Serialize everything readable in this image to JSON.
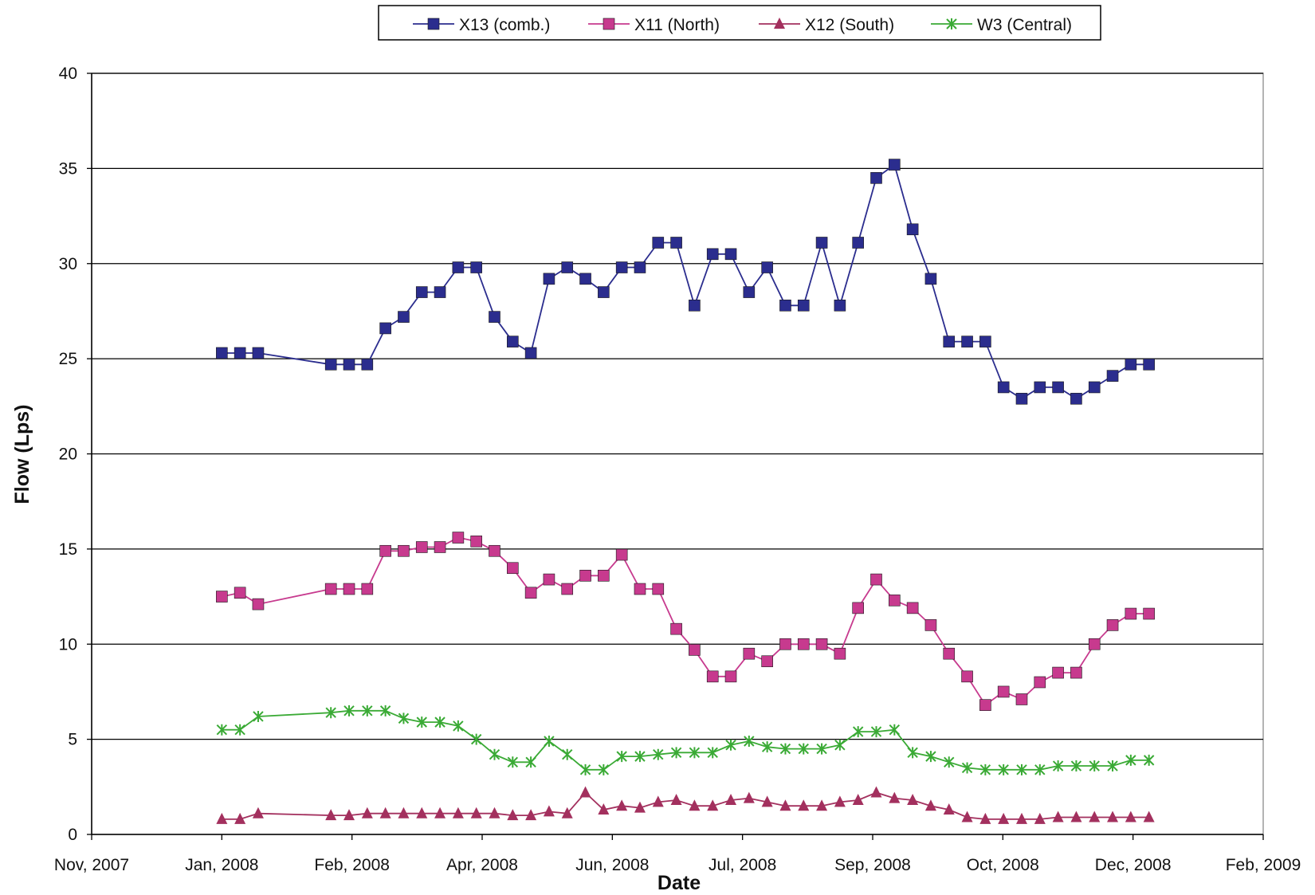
{
  "chart_data": {
    "type": "line",
    "xlabel": "Date",
    "ylabel": "Flow  (Lps)",
    "ylim": [
      0,
      40
    ],
    "y_ticks": [
      0,
      5,
      10,
      15,
      20,
      25,
      30,
      35,
      40
    ],
    "y_tick_labels": [
      "0",
      "5",
      "10",
      "15",
      "20",
      "25",
      "30",
      "35",
      "40"
    ],
    "x_tick_labels": [
      "Nov, 2007",
      "Jan, 2008",
      "Feb, 2008",
      "Apr, 2008",
      "Jun, 2008",
      "Jul, 2008",
      "Sep, 2008",
      "Oct, 2008",
      "Dec, 2008",
      "Feb, 2009"
    ],
    "grid": "horizontal",
    "legend_position": "top",
    "series": [
      {
        "name": "X13 (comb.)",
        "color": "#2B2D8E",
        "marker": "square",
        "values": [
          25.3,
          25.3,
          25.3,
          24.7,
          24.7,
          24.7,
          26.6,
          27.2,
          28.5,
          28.5,
          29.8,
          29.8,
          27.2,
          25.9,
          25.3,
          29.2,
          29.8,
          29.2,
          28.5,
          29.8,
          29.8,
          31.1,
          31.1,
          27.8,
          30.5,
          30.5,
          28.5,
          29.8,
          27.8,
          27.8,
          31.1,
          27.8,
          31.1,
          34.5,
          35.2,
          31.8,
          29.2,
          25.9,
          25.9,
          25.9,
          23.5,
          22.9,
          23.5,
          23.5,
          22.9,
          23.5,
          24.1,
          24.7,
          24.7
        ]
      },
      {
        "name": "X11 (North)",
        "color": "#C73A8E",
        "marker": "square",
        "values": [
          12.5,
          12.7,
          12.1,
          12.9,
          12.9,
          12.9,
          14.9,
          14.9,
          15.1,
          15.1,
          15.6,
          15.4,
          14.9,
          14.0,
          12.7,
          13.4,
          12.9,
          13.6,
          13.6,
          14.7,
          12.9,
          12.9,
          10.8,
          9.7,
          8.3,
          8.3,
          9.5,
          9.1,
          10.0,
          10.0,
          10.0,
          9.5,
          11.9,
          13.4,
          12.3,
          11.9,
          11.0,
          9.5,
          8.3,
          6.8,
          7.5,
          7.1,
          8.0,
          8.5,
          8.5,
          10.0,
          11.0,
          11.6,
          11.6
        ]
      },
      {
        "name": "X12 (South)",
        "color": "#A3305E",
        "marker": "triangle",
        "values": [
          0.8,
          0.8,
          1.1,
          1.0,
          1.0,
          1.1,
          1.1,
          1.1,
          1.1,
          1.1,
          1.1,
          1.1,
          1.1,
          1.0,
          1.0,
          1.2,
          1.1,
          2.2,
          1.3,
          1.5,
          1.4,
          1.7,
          1.8,
          1.5,
          1.5,
          1.8,
          1.9,
          1.7,
          1.5,
          1.5,
          1.5,
          1.7,
          1.8,
          2.2,
          1.9,
          1.8,
          1.5,
          1.3,
          0.9,
          0.8,
          0.8,
          0.8,
          0.8,
          0.9,
          0.9,
          0.9,
          0.9,
          0.9,
          0.9
        ]
      },
      {
        "name": "W3 (Central)",
        "color": "#3AAA35",
        "marker": "asterisk",
        "values": [
          5.5,
          5.5,
          6.2,
          6.4,
          6.5,
          6.5,
          6.5,
          6.1,
          5.9,
          5.9,
          5.7,
          5.0,
          4.2,
          3.8,
          3.8,
          4.9,
          4.2,
          3.4,
          3.4,
          4.1,
          4.1,
          4.2,
          4.3,
          4.3,
          4.3,
          4.7,
          4.9,
          4.6,
          4.5,
          4.5,
          4.5,
          4.7,
          5.4,
          5.4,
          5.5,
          4.3,
          4.1,
          3.8,
          3.5,
          3.4,
          3.4,
          3.4,
          3.4,
          3.6,
          3.6,
          3.6,
          3.6,
          3.9,
          3.9
        ]
      }
    ]
  }
}
